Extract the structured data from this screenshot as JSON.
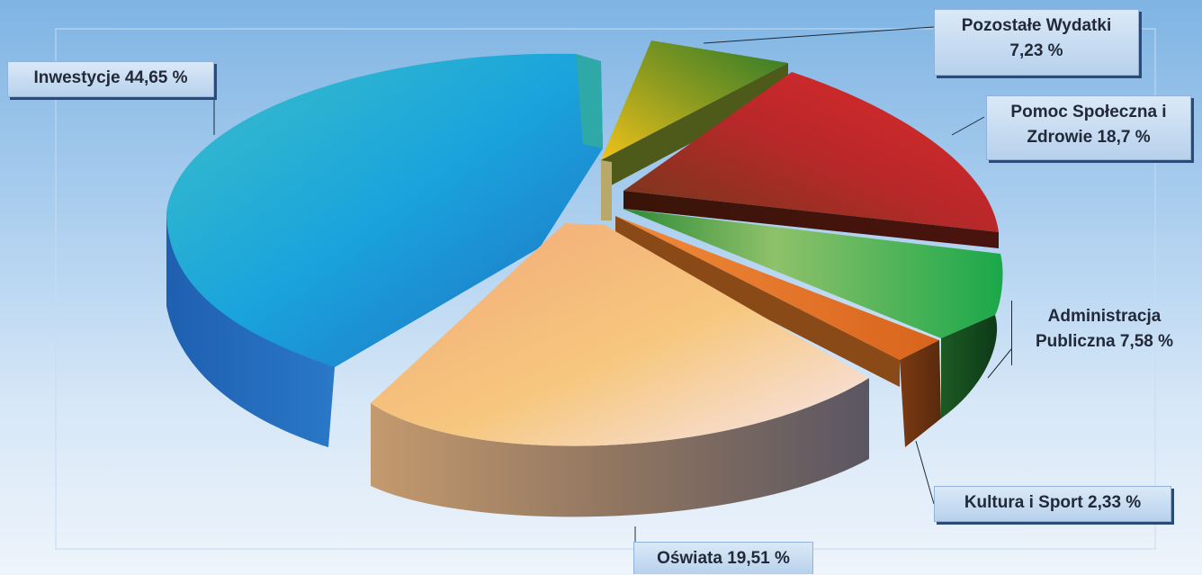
{
  "chart_data": {
    "type": "pie",
    "title": "",
    "slices": [
      {
        "name": "Inwestycje",
        "value": 44.65,
        "label": "Inwestycje 44,65 %",
        "color": "#1fa6db"
      },
      {
        "name": "Pozostałe Wydatki",
        "value": 7.23,
        "label": "Pozostałe Wydatki\n7,23 %",
        "color": "#8a9a20"
      },
      {
        "name": "Pomoc Społeczna i Zdrowie",
        "value": 18.7,
        "label": "Pomoc Społeczna i\nZdrowie 18,7 %",
        "color": "#b8282a"
      },
      {
        "name": "Administracja Publiczna",
        "value": 7.58,
        "label": "Administracja\nPubliczna 7,58 %",
        "color": "#3fae4a"
      },
      {
        "name": "Kultura i Sport",
        "value": 2.33,
        "label": "Kultura i Sport 2,33 %",
        "color": "#e8782c"
      },
      {
        "name": "Oświata",
        "value": 19.51,
        "label": "Oświata 19,51 %",
        "color": "#f3b079"
      }
    ],
    "legend": "none"
  }
}
